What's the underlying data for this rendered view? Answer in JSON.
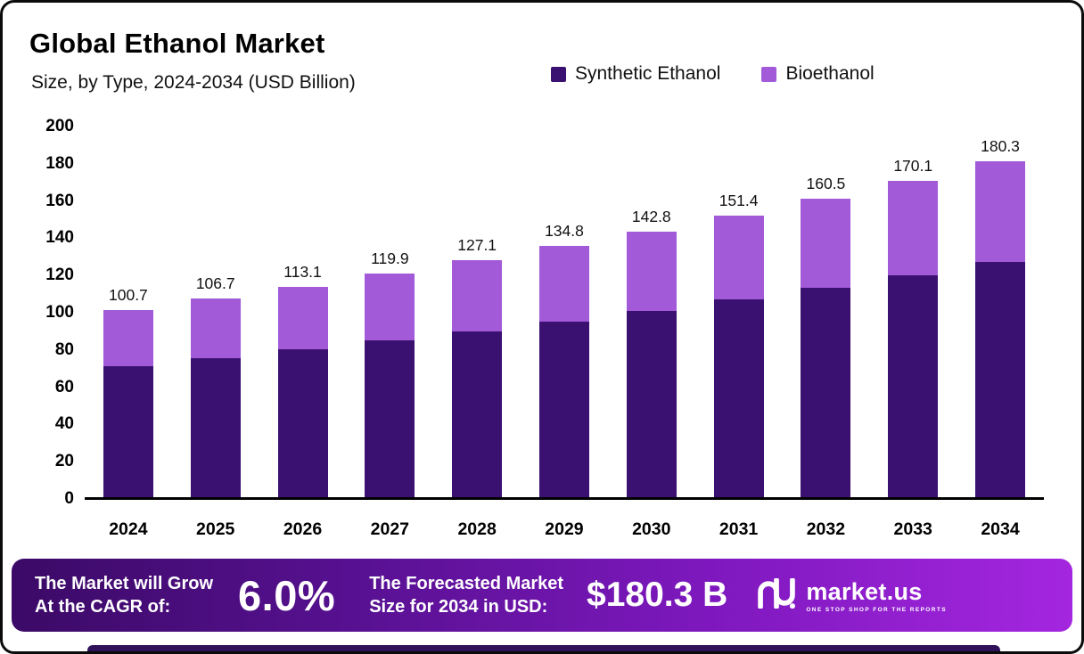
{
  "title": "Global Ethanol Market",
  "subtitle": "Size, by Type, 2024-2034 (USD Billion)",
  "legend": [
    {
      "label": "Synthetic Ethanol",
      "color": "#3a1170"
    },
    {
      "label": "Bioethanol",
      "color": "#a25ad8"
    }
  ],
  "chart_data": {
    "type": "bar",
    "stacked": true,
    "title": "Global Ethanol Market Size, by Type, 2024-2034 (USD Billion)",
    "categories": [
      "2024",
      "2025",
      "2026",
      "2027",
      "2028",
      "2029",
      "2030",
      "2031",
      "2032",
      "2033",
      "2034"
    ],
    "series": [
      {
        "name": "Synthetic Ethanol",
        "color": "#3a1170",
        "values": [
          70.5,
          74.7,
          79.2,
          84.0,
          89.0,
          94.4,
          100.0,
          106.0,
          112.4,
          119.1,
          126.3
        ]
      },
      {
        "name": "Bioethanol",
        "color": "#a25ad8",
        "values": [
          30.2,
          32.0,
          33.9,
          35.9,
          38.1,
          40.4,
          42.8,
          45.4,
          48.1,
          51.0,
          54.0
        ]
      }
    ],
    "totals": [
      100.7,
      106.7,
      113.1,
      119.9,
      127.1,
      134.8,
      142.8,
      151.4,
      160.5,
      170.1,
      180.3
    ],
    "ylim": [
      0,
      200
    ],
    "yticks": [
      0,
      20,
      40,
      60,
      80,
      100,
      120,
      140,
      160,
      180,
      200
    ],
    "legend_position": "top",
    "grid": false
  },
  "footer": {
    "cagr_label_line1": "The Market will Grow",
    "cagr_label_line2": "At the CAGR of:",
    "cagr_value": "6.0%",
    "forecast_label_line1": "The Forecasted Market",
    "forecast_label_line2": "Size for 2034 in USD:",
    "forecast_value": "$180.3 B",
    "brand": "market.us",
    "brand_tagline": "ONE STOP SHOP FOR THE REPORTS"
  }
}
